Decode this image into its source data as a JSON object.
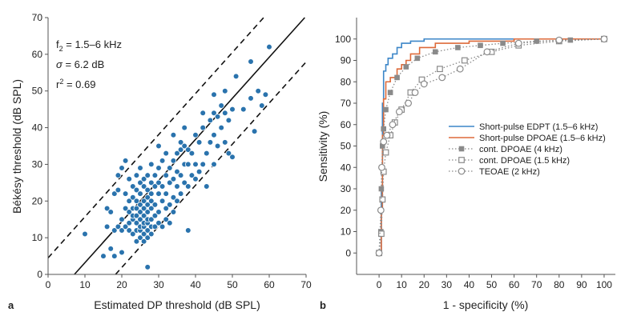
{
  "chart_data": [
    {
      "panel": "a",
      "type": "scatter",
      "xlabel": "Estimated DP threshold (dB SPL)",
      "ylabel": "Békésy threshold (dB SPL)",
      "xlim": [
        0,
        70
      ],
      "ylim": [
        0,
        70
      ],
      "xticks": [
        0,
        10,
        20,
        30,
        40,
        50,
        60,
        70
      ],
      "yticks": [
        0,
        10,
        20,
        30,
        40,
        50,
        60,
        70
      ],
      "annotations": [
        {
          "main": "f",
          "sub": "2",
          "rest": " = 1.5–6 kHz"
        },
        {
          "main": "σ",
          "rest": " = 6.2 dB"
        },
        {
          "main": "r",
          "sup": "2",
          "rest": " = 0.69"
        }
      ],
      "point_color": "#2a73ad",
      "regression_line": {
        "slope": 1.12,
        "intercept": -8
      },
      "confidence_offset": 12.5,
      "points": [
        [
          10,
          11
        ],
        [
          15,
          5
        ],
        [
          16,
          18
        ],
        [
          16,
          13
        ],
        [
          17,
          7
        ],
        [
          17,
          17
        ],
        [
          18,
          5
        ],
        [
          18,
          12
        ],
        [
          18,
          22
        ],
        [
          19,
          13
        ],
        [
          19,
          23
        ],
        [
          19,
          27
        ],
        [
          20,
          6
        ],
        [
          20,
          12
        ],
        [
          20,
          15
        ],
        [
          20,
          29
        ],
        [
          21,
          13
        ],
        [
          21,
          18
        ],
        [
          21,
          22
        ],
        [
          21,
          31
        ],
        [
          22,
          12
        ],
        [
          22,
          14
        ],
        [
          22,
          17
        ],
        [
          22,
          20
        ],
        [
          22,
          26
        ],
        [
          23,
          11
        ],
        [
          23,
          15
        ],
        [
          23,
          16
        ],
        [
          23,
          18
        ],
        [
          23,
          21
        ],
        [
          23,
          24
        ],
        [
          24,
          9
        ],
        [
          24,
          12
        ],
        [
          24,
          14
        ],
        [
          24,
          16
        ],
        [
          24,
          18
        ],
        [
          24,
          20
        ],
        [
          24,
          23
        ],
        [
          24,
          27
        ],
        [
          25,
          10
        ],
        [
          25,
          12
        ],
        [
          25,
          13
        ],
        [
          25,
          15
        ],
        [
          25,
          17
        ],
        [
          25,
          19
        ],
        [
          25,
          22
        ],
        [
          25,
          25
        ],
        [
          25,
          29
        ],
        [
          26,
          9
        ],
        [
          26,
          11
        ],
        [
          26,
          13
        ],
        [
          26,
          14
        ],
        [
          26,
          16
        ],
        [
          26,
          18
        ],
        [
          26,
          20
        ],
        [
          26,
          24
        ],
        [
          26,
          26
        ],
        [
          27,
          2
        ],
        [
          27,
          10
        ],
        [
          27,
          12
        ],
        [
          27,
          14
        ],
        [
          27,
          15
        ],
        [
          27,
          17
        ],
        [
          27,
          19
        ],
        [
          27,
          21
        ],
        [
          27,
          23
        ],
        [
          27,
          27
        ],
        [
          28,
          11
        ],
        [
          28,
          13
        ],
        [
          28,
          15
        ],
        [
          28,
          18
        ],
        [
          28,
          20
        ],
        [
          28,
          22
        ],
        [
          28,
          25
        ],
        [
          28,
          30
        ],
        [
          29,
          13
        ],
        [
          29,
          16
        ],
        [
          29,
          19
        ],
        [
          29,
          24
        ],
        [
          29,
          27
        ],
        [
          30,
          14
        ],
        [
          30,
          17
        ],
        [
          30,
          22
        ],
        [
          30,
          25
        ],
        [
          30,
          29
        ],
        [
          30,
          35
        ],
        [
          31,
          13
        ],
        [
          31,
          20
        ],
        [
          31,
          24
        ],
        [
          31,
          31
        ],
        [
          32,
          15
        ],
        [
          32,
          18
        ],
        [
          32,
          22
        ],
        [
          32,
          27
        ],
        [
          32,
          33
        ],
        [
          33,
          14
        ],
        [
          33,
          19
        ],
        [
          33,
          25
        ],
        [
          33,
          29
        ],
        [
          34,
          17
        ],
        [
          34,
          21
        ],
        [
          34,
          26
        ],
        [
          34,
          31
        ],
        [
          34,
          38
        ],
        [
          35,
          20
        ],
        [
          35,
          24
        ],
        [
          35,
          28
        ],
        [
          35,
          33
        ],
        [
          36,
          22
        ],
        [
          36,
          27
        ],
        [
          36,
          34
        ],
        [
          36,
          36
        ],
        [
          37,
          25
        ],
        [
          37,
          30
        ],
        [
          37,
          35
        ],
        [
          37,
          40
        ],
        [
          38,
          12
        ],
        [
          38,
          24
        ],
        [
          38,
          30
        ],
        [
          38,
          34
        ],
        [
          39,
          27
        ],
        [
          39,
          33
        ],
        [
          40,
          26
        ],
        [
          40,
          30
        ],
        [
          40,
          38
        ],
        [
          41,
          28
        ],
        [
          41,
          36
        ],
        [
          42,
          30
        ],
        [
          42,
          40
        ],
        [
          42,
          44
        ],
        [
          43,
          24
        ],
        [
          43,
          33
        ],
        [
          44,
          36
        ],
        [
          44,
          42
        ],
        [
          45,
          30
        ],
        [
          45,
          38
        ],
        [
          45,
          44
        ],
        [
          45,
          49
        ],
        [
          46,
          35
        ],
        [
          46,
          43
        ],
        [
          47,
          40
        ],
        [
          47,
          46
        ],
        [
          48,
          36
        ],
        [
          48,
          44
        ],
        [
          48,
          50
        ],
        [
          49,
          33
        ],
        [
          49,
          42
        ],
        [
          50,
          32
        ],
        [
          50,
          45
        ],
        [
          51,
          54
        ],
        [
          53,
          45
        ],
        [
          55,
          58
        ],
        [
          55,
          48
        ],
        [
          56,
          39
        ],
        [
          57,
          50
        ],
        [
          58,
          46
        ],
        [
          59,
          49
        ],
        [
          60,
          62
        ]
      ]
    },
    {
      "panel": "b",
      "type": "line",
      "xlabel": "1 - specificity (%)",
      "ylabel": "Sensitivity (%)",
      "xlim": [
        -10,
        105
      ],
      "ylim": [
        -10,
        110
      ],
      "xticks": [
        0,
        10,
        20,
        30,
        40,
        50,
        60,
        70,
        80,
        90,
        100
      ],
      "yticks": [
        0,
        10,
        20,
        30,
        40,
        50,
        60,
        70,
        80,
        90,
        100
      ],
      "series": [
        {
          "name": "Short-pulse EDPT (1.5–6 kHz)",
          "color": "#3c86c8",
          "style": "step",
          "marker": "none",
          "x": [
            0,
            1,
            1.5,
            2,
            3,
            4,
            6,
            8,
            10,
            14,
            20,
            40,
            100
          ],
          "y": [
            0,
            30,
            70,
            85,
            88,
            91,
            93,
            96,
            98,
            99,
            100,
            100,
            100
          ]
        },
        {
          "name": "Short-pulse DPOAE (1.5–6 kHz)",
          "color": "#dd6a3a",
          "style": "step",
          "marker": "none",
          "x": [
            0,
            1,
            1.5,
            2,
            3,
            5,
            8,
            10,
            12,
            14,
            18,
            25,
            40,
            60,
            100
          ],
          "y": [
            0,
            20,
            55,
            72,
            80,
            82,
            86,
            88,
            90,
            93,
            96,
            98,
            99,
            100,
            100
          ]
        },
        {
          "name": "cont. DPOAE (4 kHz)",
          "color": "#8a8a8a",
          "style": "dotted",
          "marker": "filled-square",
          "x": [
            0,
            0.8,
            1,
            1.5,
            2,
            3,
            5,
            8,
            12,
            17,
            25,
            35,
            45,
            55,
            70,
            85,
            100
          ],
          "y": [
            0,
            10,
            30,
            50,
            58,
            67,
            75,
            82,
            87,
            91,
            94,
            96,
            97,
            98,
            99,
            99.5,
            100
          ]
        },
        {
          "name": "cont. DPOAE (1.5 kHz)",
          "color": "#8a8a8a",
          "style": "dotted",
          "marker": "open-square",
          "x": [
            0,
            1,
            1.5,
            2,
            3,
            5,
            7,
            10,
            14,
            19,
            27,
            38,
            50,
            62,
            80,
            100
          ],
          "y": [
            0,
            9,
            25,
            38,
            47,
            55,
            61,
            67,
            75,
            81,
            86,
            90,
            94,
            97,
            99,
            100
          ]
        },
        {
          "name": "TEOAE (2 kHz)",
          "color": "#8a8a8a",
          "style": "dotted",
          "marker": "open-circle",
          "x": [
            0,
            0.8,
            1.2,
            2,
            3.5,
            6,
            9,
            13,
            16,
            20,
            28,
            36,
            48,
            62,
            80,
            100
          ],
          "y": [
            0,
            20,
            40,
            52,
            55,
            60,
            66,
            70,
            75,
            79,
            82,
            86,
            94,
            98,
            99.5,
            100
          ]
        }
      ],
      "legend_position": "center-right",
      "grid": false
    }
  ],
  "panels": {
    "a": {
      "letter": "a"
    },
    "b": {
      "letter": "b"
    }
  }
}
